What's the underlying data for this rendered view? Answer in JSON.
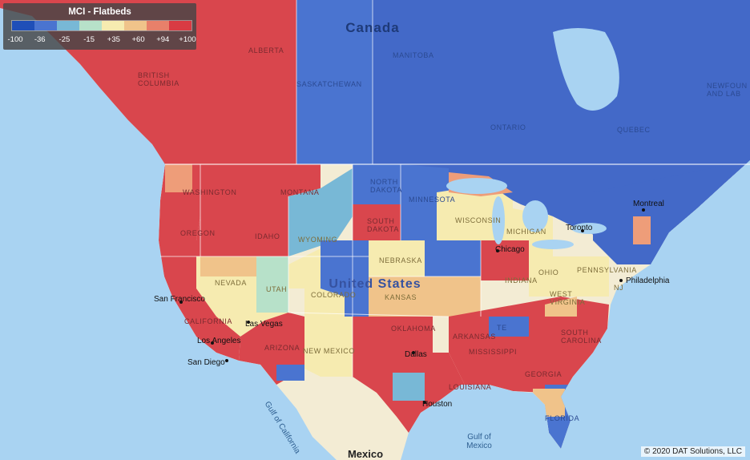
{
  "legend": {
    "title": "MCI - Flatbeds",
    "ticks": [
      "-100",
      "-36",
      "-25",
      "-15",
      "+35",
      "+60",
      "+94",
      "+100"
    ],
    "colors": [
      "#1f4fb8",
      "#4a74d0",
      "#78b8d6",
      "#b7e1c9",
      "#f6ebb0",
      "#f0c38a",
      "#e8806a",
      "#d93b43"
    ]
  },
  "places": {
    "canada": "Canada",
    "united_states": "United States",
    "mexico": "Mexico",
    "gulf_of_mexico": "Gulf of\nMexico",
    "gulf_of_california": "Gulf of California",
    "alberta": "ALBERTA",
    "british_columbia": "BRITISH\nCOLUMBIA",
    "saskatchewan": "SASKATCHEWAN",
    "manitoba": "MANITOBA",
    "ontario": "ONTARIO",
    "quebec": "QUEBEC",
    "newfoundland": "NEWFOUN\nAND LAB",
    "washington": "WASHINGTON",
    "oregon": "OREGON",
    "idaho": "IDAHO",
    "montana": "MONTANA",
    "wyoming": "WYOMING",
    "nevada": "NEVADA",
    "utah": "UTAH",
    "colorado": "COLORADO",
    "california": "CALIFORNIA",
    "arizona": "ARIZONA",
    "new_mexico": "NEW MEXICO",
    "north_dakota": "NORTH\nDAKOTA",
    "south_dakota": "SOUTH\nDAKOTA",
    "nebraska": "NEBRASKA",
    "kansas": "KANSAS",
    "oklahoma": "OKLAHOMA",
    "minnesota": "MINNESOTA",
    "wisconsin": "WISCONSIN",
    "michigan": "MICHIGAN",
    "indiana": "INDIANA",
    "ohio": "OHIO",
    "pennsylvania": "PENNSYLVANIA",
    "nj": "NJ",
    "arkansas": "ARKANSAS",
    "mississippi": "MISSISSIPPI",
    "louisiana": "LOUISIANA",
    "tennessee": "TE",
    "west_virginia": "WEST\nVIRGINIA",
    "south_carolina": "SOUTH\nCAROLINA",
    "georgia": "GEORGIA",
    "florida": "FLORIDA",
    "san_francisco": "San Francisco",
    "las_vegas": "Las Vegas",
    "los_angeles": "Los Angeles",
    "san_diego": "San Diego",
    "chicago": "Chicago",
    "toronto": "Toronto",
    "montreal": "Montreal",
    "philadelphia": "Philadelphia",
    "dallas": "Dallas",
    "houston": "Houston"
  },
  "attribution": "© 2020 DAT Solutions, LLC"
}
